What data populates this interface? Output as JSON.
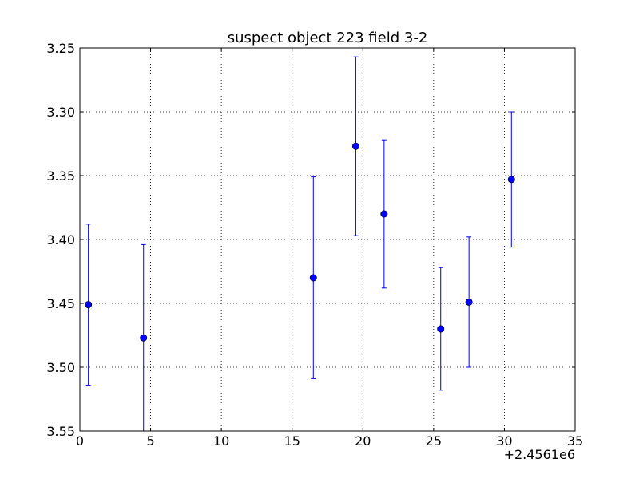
{
  "chart_data": {
    "type": "scatter",
    "title": "suspect object 223 field 3-2",
    "xlabel": "",
    "ylabel": "",
    "x_offset_label": "+2.4561e6",
    "xlim": [
      0,
      35
    ],
    "ylim": [
      3.55,
      3.25
    ],
    "y_inverted": true,
    "grid": true,
    "x_ticks": [
      0,
      5,
      10,
      15,
      20,
      25,
      30,
      35
    ],
    "x_tick_labels": [
      "0",
      "5",
      "10",
      "15",
      "20",
      "25",
      "30",
      "35"
    ],
    "y_ticks": [
      3.25,
      3.3,
      3.35,
      3.4,
      3.45,
      3.5,
      3.55
    ],
    "y_tick_labels": [
      "3.25",
      "3.30",
      "3.35",
      "3.40",
      "3.45",
      "3.50",
      "3.55"
    ],
    "series": [
      {
        "color": "#0000ff",
        "marker": "circle",
        "error_bars": true,
        "points": [
          {
            "x": 0.6,
            "y": 3.451,
            "err": 0.063
          },
          {
            "x": 4.5,
            "y": 3.477,
            "err": 0.073
          },
          {
            "x": 16.5,
            "y": 3.43,
            "err": 0.079
          },
          {
            "x": 19.5,
            "y": 3.327,
            "err": 0.07
          },
          {
            "x": 21.5,
            "y": 3.38,
            "err": 0.058
          },
          {
            "x": 25.5,
            "y": 3.47,
            "err": 0.048
          },
          {
            "x": 27.5,
            "y": 3.449,
            "err": 0.051
          },
          {
            "x": 30.5,
            "y": 3.353,
            "err": 0.053
          }
        ]
      }
    ]
  }
}
